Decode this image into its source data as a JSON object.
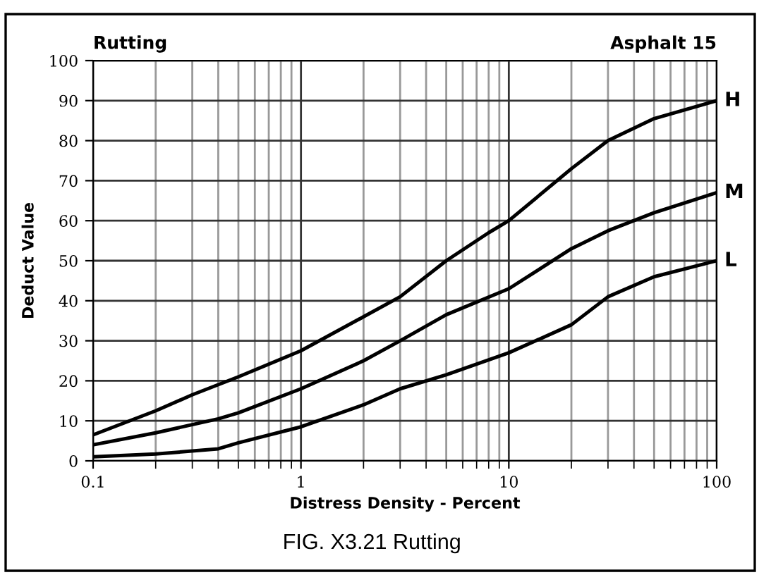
{
  "chart_data": {
    "type": "line",
    "title": "Rutting",
    "subtitle": "Asphalt 15",
    "xlabel": "Distress Density - Percent",
    "ylabel": "Deduct Value",
    "annotations": [
      "FIG. X3.21 Rutting"
    ],
    "log": "x",
    "grid": true,
    "legend": false,
    "marker": "none",
    "line_style": "solid",
    "xlim": [
      0.1,
      100
    ],
    "xticks": [
      0.1,
      1,
      10,
      100
    ],
    "ylim": [
      0,
      100
    ],
    "yticks": [
      0,
      10,
      20,
      30,
      40,
      50,
      60,
      70,
      80,
      90,
      100
    ],
    "series": [
      {
        "name": "H",
        "color": "#000000",
        "x": [
          0.1,
          0.2,
          0.3,
          0.5,
          1,
          2,
          3,
          5,
          8,
          10,
          20,
          30,
          50,
          100
        ],
        "values": [
          6.5,
          12.5,
          16.5,
          21,
          27.5,
          36,
          41,
          50,
          57,
          60,
          73,
          80,
          85.5,
          90
        ]
      },
      {
        "name": "M",
        "color": "#000000",
        "x": [
          0.1,
          0.2,
          0.4,
          0.5,
          1,
          2,
          3,
          5,
          10,
          20,
          30,
          50,
          100
        ],
        "values": [
          4,
          7,
          10.5,
          12,
          18,
          25,
          30,
          36.5,
          43,
          53,
          57.5,
          62,
          67
        ]
      },
      {
        "name": "L",
        "color": "#000000",
        "x": [
          0.1,
          0.2,
          0.4,
          0.5,
          1,
          2,
          3,
          5,
          10,
          20,
          30,
          50,
          100
        ],
        "values": [
          1,
          1.7,
          3,
          4.5,
          8.5,
          14,
          18,
          21.5,
          27,
          34,
          41,
          46,
          50
        ]
      }
    ]
  }
}
